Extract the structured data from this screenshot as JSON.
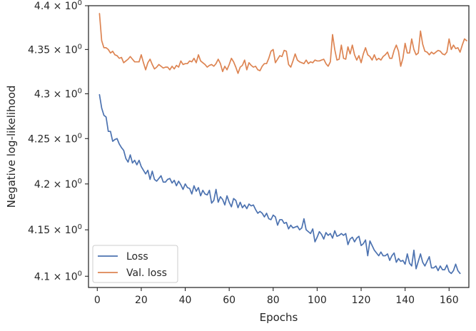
{
  "chart_data": {
    "type": "line",
    "title": "",
    "xlabel": "Epochs",
    "ylabel": "Negative log-likelihood",
    "xlim": [
      -4,
      169
    ],
    "ylim": [
      4.088,
      4.4
    ],
    "yscale": "log",
    "x_ticks": [
      0,
      20,
      40,
      60,
      80,
      100,
      120,
      140,
      160
    ],
    "x_tick_labels": [
      "0",
      "20",
      "40",
      "60",
      "80",
      "100",
      "120",
      "140",
      "160"
    ],
    "y_ticks": [
      4.1,
      4.15,
      4.2,
      4.25,
      4.3,
      4.35,
      4.4
    ],
    "y_tick_labels": [
      {
        "base": "4.1",
        "exp": "0"
      },
      {
        "base": "4.15",
        "exp": "0"
      },
      {
        "base": "4.2",
        "exp": "0"
      },
      {
        "base": "4.25",
        "exp": "0"
      },
      {
        "base": "4.3",
        "exp": "0"
      },
      {
        "base": "4.35",
        "exp": "0"
      },
      {
        "base": "4.4",
        "exp": "0"
      }
    ],
    "grid": false,
    "legend_position": "lower-left",
    "series": [
      {
        "name": "Loss",
        "color": "#4c72b0",
        "x_start": 1,
        "x_step": 1,
        "values": [
          4.299,
          4.284,
          4.276,
          4.274,
          4.258,
          4.258,
          4.247,
          4.249,
          4.25,
          4.244,
          4.24,
          4.237,
          4.228,
          4.224,
          4.232,
          4.223,
          4.226,
          4.221,
          4.226,
          4.219,
          4.215,
          4.211,
          4.215,
          4.205,
          4.214,
          4.205,
          4.203,
          4.206,
          4.209,
          4.202,
          4.202,
          4.205,
          4.206,
          4.201,
          4.204,
          4.198,
          4.203,
          4.199,
          4.194,
          4.2,
          4.196,
          4.195,
          4.189,
          4.198,
          4.192,
          4.196,
          4.187,
          4.193,
          4.189,
          4.188,
          4.193,
          4.179,
          4.182,
          4.194,
          4.18,
          4.186,
          4.183,
          4.177,
          4.187,
          4.18,
          4.175,
          4.184,
          4.182,
          4.174,
          4.18,
          4.174,
          4.177,
          4.173,
          4.178,
          4.176,
          4.177,
          4.172,
          4.168,
          4.17,
          4.168,
          4.164,
          4.168,
          4.162,
          4.161,
          4.166,
          4.164,
          4.155,
          4.161,
          4.161,
          4.157,
          4.158,
          4.151,
          4.155,
          4.152,
          4.153,
          4.154,
          4.15,
          4.152,
          4.162,
          4.15,
          4.148,
          4.146,
          4.151,
          4.137,
          4.142,
          4.148,
          4.145,
          4.14,
          4.147,
          4.144,
          4.146,
          4.141,
          4.149,
          4.143,
          4.144,
          4.146,
          4.144,
          4.146,
          4.134,
          4.14,
          4.142,
          4.137,
          4.141,
          4.143,
          4.133,
          4.135,
          4.139,
          4.122,
          4.138,
          4.133,
          4.128,
          4.125,
          4.122,
          4.126,
          4.122,
          4.122,
          4.124,
          4.117,
          4.122,
          4.125,
          4.115,
          4.119,
          4.116,
          4.117,
          4.113,
          4.124,
          4.114,
          4.111,
          4.128,
          4.108,
          4.116,
          4.124,
          4.115,
          4.111,
          4.116,
          4.121,
          4.109,
          4.109,
          4.111,
          4.106,
          4.111,
          4.107,
          4.107,
          4.112,
          4.105,
          4.103,
          4.106,
          4.113,
          4.106,
          4.103
        ]
      },
      {
        "name": "Val. loss",
        "color": "#dd8452",
        "x_start": 1,
        "x_step": 1,
        "values": [
          4.391,
          4.36,
          4.352,
          4.352,
          4.35,
          4.346,
          4.348,
          4.344,
          4.343,
          4.34,
          4.341,
          4.335,
          4.337,
          4.339,
          4.342,
          4.339,
          4.336,
          4.336,
          4.336,
          4.344,
          4.335,
          4.327,
          4.335,
          4.339,
          4.333,
          4.328,
          4.33,
          4.333,
          4.331,
          4.329,
          4.33,
          4.33,
          4.327,
          4.331,
          4.328,
          4.332,
          4.33,
          4.337,
          4.333,
          4.334,
          4.334,
          4.337,
          4.336,
          4.34,
          4.335,
          4.344,
          4.337,
          4.335,
          4.333,
          4.33,
          4.332,
          4.333,
          4.331,
          4.334,
          4.339,
          4.334,
          4.325,
          4.331,
          4.327,
          4.333,
          4.34,
          4.336,
          4.33,
          4.323,
          4.33,
          4.332,
          4.338,
          4.327,
          4.335,
          4.332,
          4.33,
          4.331,
          4.327,
          4.326,
          4.331,
          4.334,
          4.334,
          4.34,
          4.348,
          4.35,
          4.335,
          4.339,
          4.343,
          4.342,
          4.349,
          4.348,
          4.333,
          4.33,
          4.337,
          4.345,
          4.338,
          4.336,
          4.335,
          4.334,
          4.338,
          4.334,
          4.336,
          4.335,
          4.338,
          4.337,
          4.337,
          4.338,
          4.339,
          4.334,
          4.331,
          4.336,
          4.367,
          4.35,
          4.338,
          4.339,
          4.355,
          4.34,
          4.339,
          4.353,
          4.345,
          4.355,
          4.344,
          4.338,
          4.343,
          4.335,
          4.345,
          4.352,
          4.344,
          4.342,
          4.338,
          4.344,
          4.338,
          4.34,
          4.338,
          4.342,
          4.344,
          4.347,
          4.34,
          4.34,
          4.349,
          4.355,
          4.348,
          4.331,
          4.34,
          4.357,
          4.346,
          4.346,
          4.362,
          4.35,
          4.344,
          4.346,
          4.371,
          4.356,
          4.348,
          4.347,
          4.344,
          4.347,
          4.345,
          4.347,
          4.349,
          4.348,
          4.345,
          4.344,
          4.347,
          4.362,
          4.35,
          4.355,
          4.351,
          4.352,
          4.347,
          4.355,
          4.362,
          4.36
        ]
      }
    ]
  }
}
